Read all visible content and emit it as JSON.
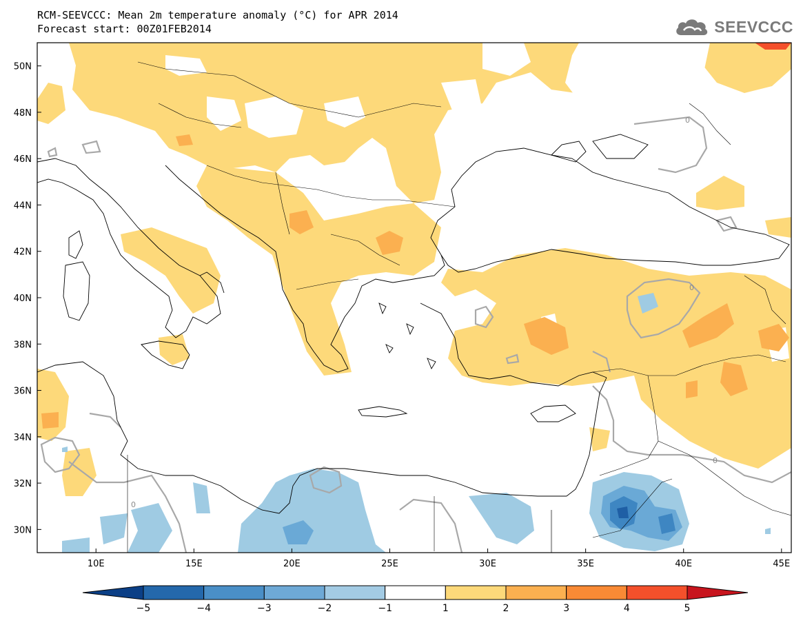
{
  "header": {
    "line1": "RCM-SEEVCCC: Mean 2m temperature anomaly (°C) for APR 2014",
    "line2": "Forecast start: 00Z01FEB2014"
  },
  "logo": {
    "text": "SEEVCCC",
    "icon": "cloud-icon"
  },
  "map": {
    "lon_range": [
      7,
      45.5
    ],
    "lat_range": [
      29,
      51
    ],
    "lon_ticks": [
      {
        "v": 10,
        "label": "10E"
      },
      {
        "v": 15,
        "label": "15E"
      },
      {
        "v": 20,
        "label": "20E"
      },
      {
        "v": 25,
        "label": "25E"
      },
      {
        "v": 30,
        "label": "30E"
      },
      {
        "v": 35,
        "label": "35E"
      },
      {
        "v": 40,
        "label": "40E"
      },
      {
        "v": 45,
        "label": "45E"
      }
    ],
    "lat_ticks": [
      {
        "v": 30,
        "label": "30N"
      },
      {
        "v": 32,
        "label": "32N"
      },
      {
        "v": 34,
        "label": "34N"
      },
      {
        "v": 36,
        "label": "36N"
      },
      {
        "v": 38,
        "label": "38N"
      },
      {
        "v": 40,
        "label": "40N"
      },
      {
        "v": 42,
        "label": "42N"
      },
      {
        "v": 44,
        "label": "44N"
      },
      {
        "v": 46,
        "label": "46N"
      },
      {
        "v": 48,
        "label": "48N"
      },
      {
        "v": 50,
        "label": "50N"
      }
    ],
    "zero_contour_label": "0",
    "colors": {
      "pos1": "#fdd97a",
      "pos2": "#fbb050",
      "pos3": "#f98a35",
      "pos4": "#f4502b",
      "neg1": "#9fcbe3",
      "neg2": "#6aa9d6",
      "neg3": "#3e86c2",
      "neg4": "#1f5fa5",
      "zero_contour": "#a8a8a8",
      "coast": "#000000"
    }
  },
  "colorbar": {
    "labels": [
      "−5",
      "−4",
      "−3",
      "−2",
      "−1",
      "1",
      "2",
      "3",
      "4",
      "5"
    ],
    "colors": [
      "#0b3f86",
      "#2468ab",
      "#4a8fc7",
      "#6ea9d6",
      "#a3cbe4",
      "#ffffff",
      "#fdd97a",
      "#fbb050",
      "#f98a35",
      "#f4502b",
      "#c8151e"
    ]
  }
}
